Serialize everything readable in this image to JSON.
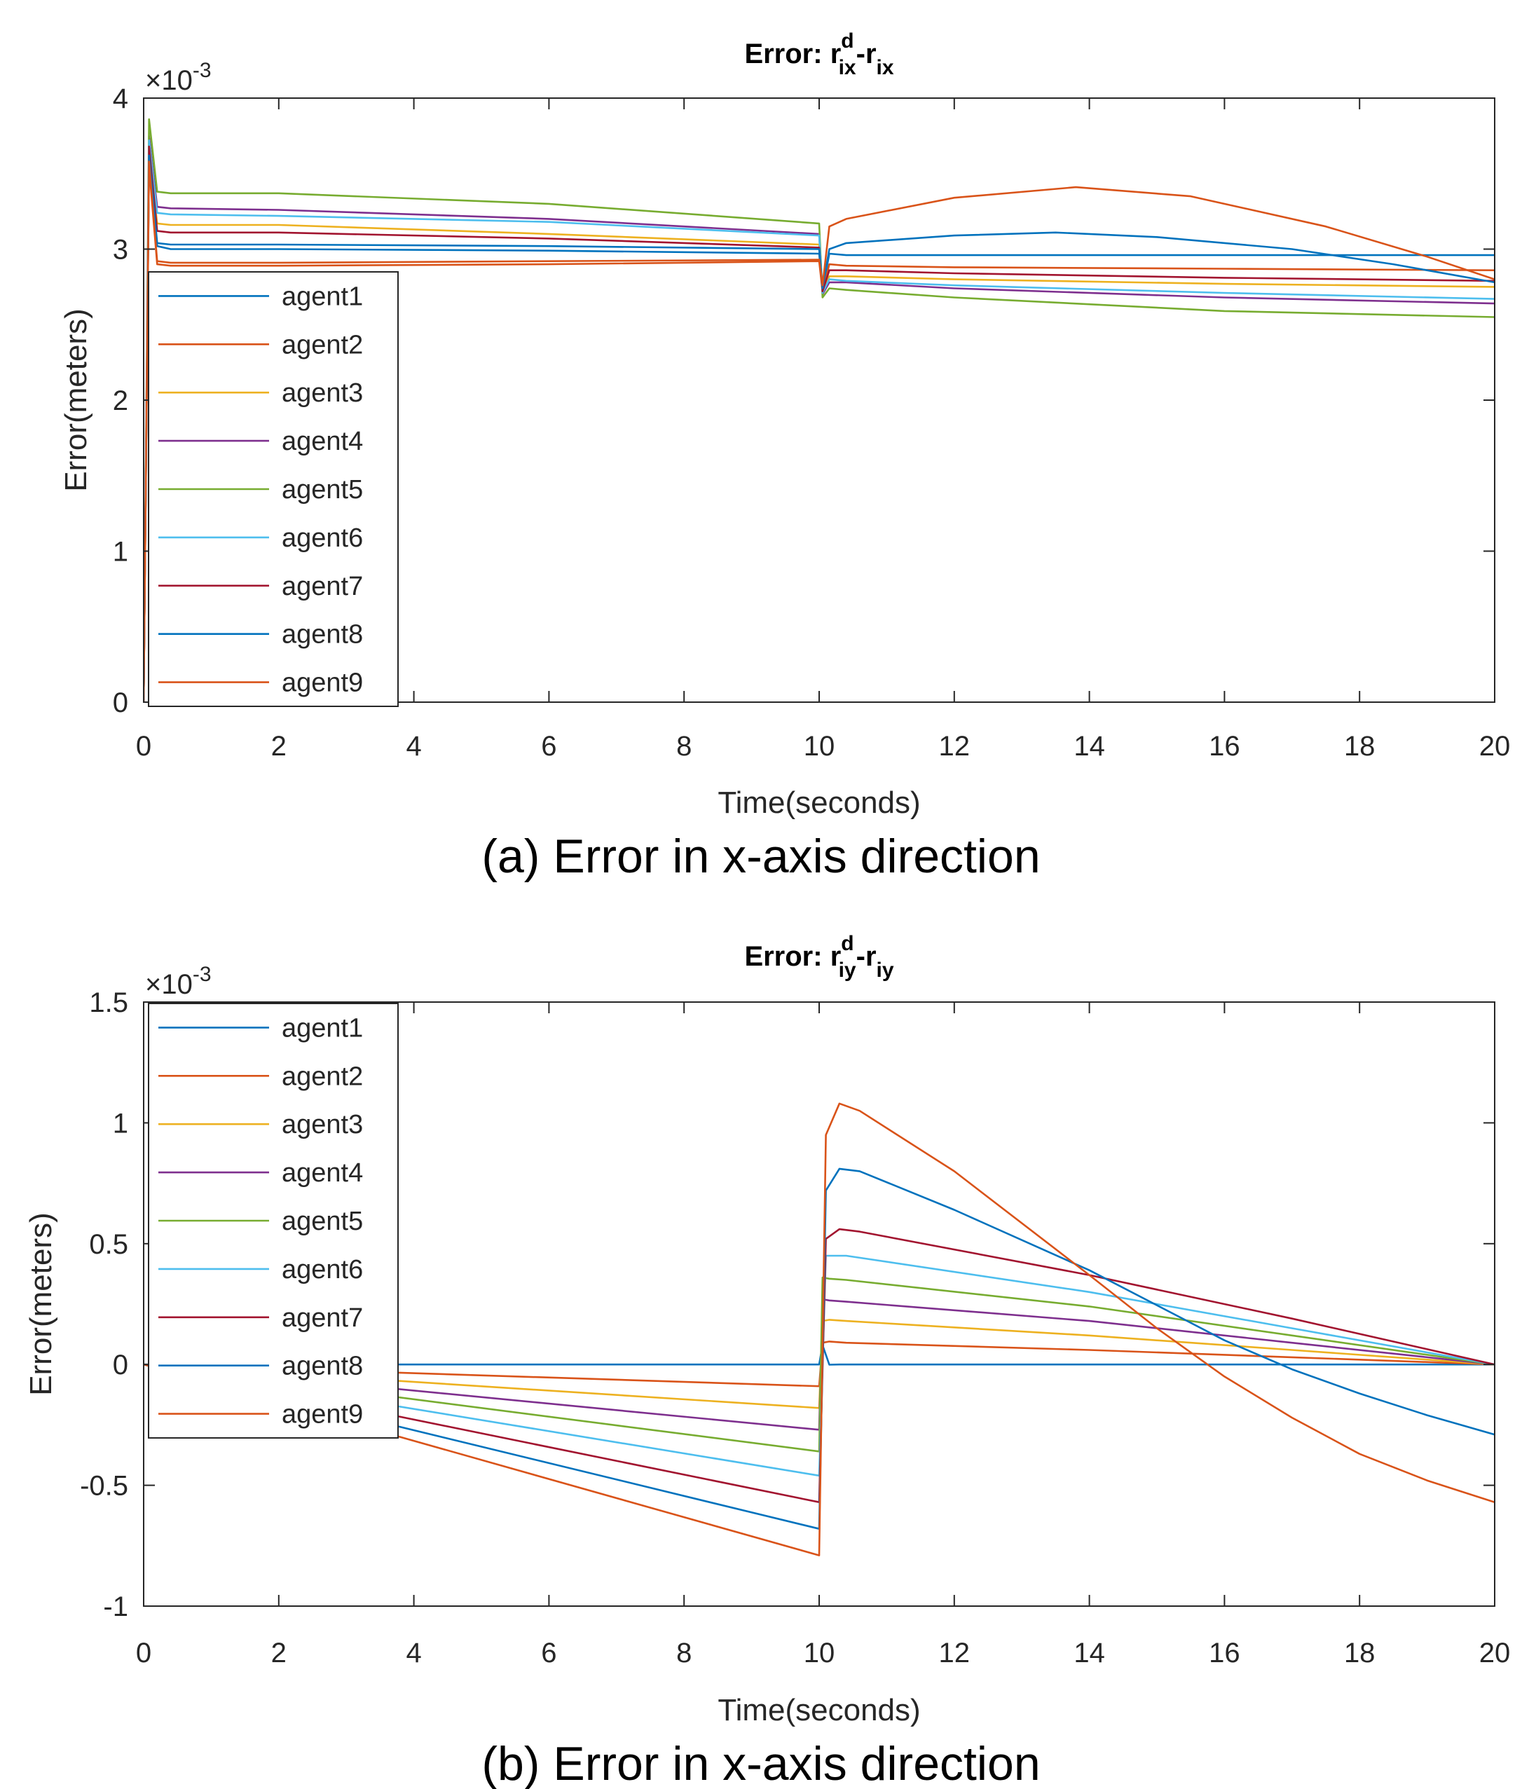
{
  "chart_data": [
    {
      "type": "line",
      "title": {
        "prefix": "Error: ",
        "base1": "r",
        "sup1": "d",
        "sub1": "ix",
        "dash": "-",
        "base2": "r",
        "sub2": "ix"
      },
      "xlabel": "Time(seconds)",
      "ylabel": "Error(meters)",
      "y_scale_label": "×10",
      "y_scale_exp": "-3",
      "xlim": [
        0,
        20
      ],
      "ylim": [
        0,
        4
      ],
      "xticks": [
        "0",
        "2",
        "4",
        "6",
        "8",
        "10",
        "12",
        "14",
        "16",
        "18",
        "20"
      ],
      "yticks": [
        "0",
        "1",
        "2",
        "3",
        "4"
      ],
      "caption": "(a) Error in x-axis direction",
      "series": [
        {
          "name": "agent1",
          "color": "#0072BD",
          "points": [
            [
              0,
              0
            ],
            [
              0.08,
              3.6
            ],
            [
              0.2,
              3.02
            ],
            [
              0.4,
              3.0
            ],
            [
              2,
              3.0
            ],
            [
              6,
              2.99
            ],
            [
              10,
              2.97
            ],
            [
              10.05,
              2.73
            ],
            [
              10.15,
              2.97
            ],
            [
              10.4,
              2.96
            ],
            [
              12,
              2.96
            ],
            [
              16,
              2.96
            ],
            [
              20,
              2.96
            ]
          ]
        },
        {
          "name": "agent2",
          "color": "#D95319",
          "points": [
            [
              0,
              0
            ],
            [
              0.08,
              3.55
            ],
            [
              0.2,
              2.9
            ],
            [
              0.4,
              2.89
            ],
            [
              2,
              2.89
            ],
            [
              6,
              2.9
            ],
            [
              10,
              2.92
            ],
            [
              10.05,
              2.72
            ],
            [
              10.15,
              2.9
            ],
            [
              10.4,
              2.89
            ],
            [
              12,
              2.88
            ],
            [
              16,
              2.87
            ],
            [
              20,
              2.86
            ]
          ]
        },
        {
          "name": "agent3",
          "color": "#EDB120",
          "points": [
            [
              0,
              0
            ],
            [
              0.08,
              3.65
            ],
            [
              0.2,
              3.17
            ],
            [
              0.4,
              3.16
            ],
            [
              2,
              3.16
            ],
            [
              6,
              3.1
            ],
            [
              10,
              3.03
            ],
            [
              10.05,
              2.72
            ],
            [
              10.15,
              2.82
            ],
            [
              10.4,
              2.82
            ],
            [
              12,
              2.8
            ],
            [
              16,
              2.77
            ],
            [
              20,
              2.75
            ]
          ]
        },
        {
          "name": "agent4",
          "color": "#7E2F8E",
          "points": [
            [
              0,
              0
            ],
            [
              0.08,
              3.75
            ],
            [
              0.2,
              3.28
            ],
            [
              0.4,
              3.27
            ],
            [
              2,
              3.26
            ],
            [
              6,
              3.2
            ],
            [
              10,
              3.1
            ],
            [
              10.05,
              2.7
            ],
            [
              10.15,
              2.78
            ],
            [
              10.4,
              2.78
            ],
            [
              12,
              2.74
            ],
            [
              16,
              2.68
            ],
            [
              20,
              2.64
            ]
          ]
        },
        {
          "name": "agent5",
          "color": "#77AC30",
          "points": [
            [
              0,
              0
            ],
            [
              0.08,
              3.86
            ],
            [
              0.2,
              3.38
            ],
            [
              0.4,
              3.37
            ],
            [
              2,
              3.37
            ],
            [
              6,
              3.3
            ],
            [
              10,
              3.17
            ],
            [
              10.05,
              2.68
            ],
            [
              10.15,
              2.74
            ],
            [
              10.4,
              2.73
            ],
            [
              12,
              2.68
            ],
            [
              16,
              2.59
            ],
            [
              20,
              2.55
            ]
          ]
        },
        {
          "name": "agent6",
          "color": "#4DBEEE",
          "points": [
            [
              0,
              0
            ],
            [
              0.08,
              3.72
            ],
            [
              0.2,
              3.24
            ],
            [
              0.4,
              3.23
            ],
            [
              2,
              3.22
            ],
            [
              6,
              3.18
            ],
            [
              10,
              3.09
            ],
            [
              10.05,
              2.71
            ],
            [
              10.15,
              2.8
            ],
            [
              10.4,
              2.79
            ],
            [
              12,
              2.76
            ],
            [
              16,
              2.71
            ],
            [
              20,
              2.67
            ]
          ]
        },
        {
          "name": "agent7",
          "color": "#A2142F",
          "points": [
            [
              0,
              0
            ],
            [
              0.08,
              3.68
            ],
            [
              0.2,
              3.12
            ],
            [
              0.4,
              3.11
            ],
            [
              2,
              3.11
            ],
            [
              6,
              3.07
            ],
            [
              10,
              3.01
            ],
            [
              10.05,
              2.72
            ],
            [
              10.15,
              2.86
            ],
            [
              10.4,
              2.86
            ],
            [
              12,
              2.84
            ],
            [
              16,
              2.81
            ],
            [
              20,
              2.79
            ]
          ]
        },
        {
          "name": "agent8",
          "color": "#0072BD",
          "points": [
            [
              0,
              0
            ],
            [
              0.08,
              3.62
            ],
            [
              0.2,
              3.04
            ],
            [
              0.4,
              3.03
            ],
            [
              2,
              3.03
            ],
            [
              6,
              3.02
            ],
            [
              10,
              3.0
            ],
            [
              10.05,
              2.74
            ],
            [
              10.15,
              3.0
            ],
            [
              10.4,
              3.04
            ],
            [
              12,
              3.09
            ],
            [
              13.5,
              3.11
            ],
            [
              15,
              3.08
            ],
            [
              17,
              3.0
            ],
            [
              18.5,
              2.9
            ],
            [
              20,
              2.78
            ]
          ]
        },
        {
          "name": "agent9",
          "color": "#D95319",
          "points": [
            [
              0,
              0
            ],
            [
              0.08,
              3.58
            ],
            [
              0.2,
              2.92
            ],
            [
              0.4,
              2.91
            ],
            [
              2,
              2.91
            ],
            [
              6,
              2.92
            ],
            [
              10,
              2.93
            ],
            [
              10.05,
              2.76
            ],
            [
              10.15,
              3.15
            ],
            [
              10.4,
              3.2
            ],
            [
              12,
              3.34
            ],
            [
              13.8,
              3.41
            ],
            [
              15.5,
              3.35
            ],
            [
              17.5,
              3.15
            ],
            [
              19,
              2.95
            ],
            [
              20,
              2.8
            ]
          ]
        }
      ]
    },
    {
      "type": "line",
      "title": {
        "prefix": "Error: ",
        "base1": "r",
        "sup1": "d",
        "sub1": "iy",
        "dash": "-",
        "base2": "r",
        "sub2": "iy"
      },
      "xlabel": "Time(seconds)",
      "ylabel": "Error(meters)",
      "y_scale_label": "×10",
      "y_scale_exp": "-3",
      "xlim": [
        0,
        20
      ],
      "ylim": [
        -1,
        1.5
      ],
      "xticks": [
        "0",
        "2",
        "4",
        "6",
        "8",
        "10",
        "12",
        "14",
        "16",
        "18",
        "20"
      ],
      "yticks": [
        "-1",
        "-0.5",
        "0",
        "0.5",
        "1",
        "1.5"
      ],
      "caption": "(b) Error in x-axis direction",
      "series": [
        {
          "name": "agent1",
          "color": "#0072BD",
          "points": [
            [
              0,
              0
            ],
            [
              10,
              0
            ],
            [
              10.05,
              0.08
            ],
            [
              10.15,
              -0.001
            ],
            [
              10.3,
              0
            ],
            [
              20,
              0
            ]
          ]
        },
        {
          "name": "agent2",
          "color": "#D95319",
          "points": [
            [
              0,
              0
            ],
            [
              10,
              -0.09
            ],
            [
              10.05,
              0.09
            ],
            [
              10.15,
              0.095
            ],
            [
              10.4,
              0.09
            ],
            [
              14,
              0.06
            ],
            [
              17,
              0.03
            ],
            [
              20,
              0
            ]
          ]
        },
        {
          "name": "agent3",
          "color": "#EDB120",
          "points": [
            [
              0,
              0
            ],
            [
              10,
              -0.18
            ],
            [
              10.05,
              0.18
            ],
            [
              10.15,
              0.185
            ],
            [
              10.4,
              0.18
            ],
            [
              14,
              0.12
            ],
            [
              17,
              0.06
            ],
            [
              20,
              0
            ]
          ]
        },
        {
          "name": "agent4",
          "color": "#7E2F8E",
          "points": [
            [
              0,
              0
            ],
            [
              10,
              -0.27
            ],
            [
              10.05,
              0.27
            ],
            [
              10.15,
              0.265
            ],
            [
              10.4,
              0.26
            ],
            [
              14,
              0.18
            ],
            [
              17,
              0.09
            ],
            [
              20,
              0
            ]
          ]
        },
        {
          "name": "agent5",
          "color": "#77AC30",
          "points": [
            [
              0,
              0
            ],
            [
              10,
              -0.36
            ],
            [
              10.05,
              0.36
            ],
            [
              10.15,
              0.355
            ],
            [
              10.4,
              0.35
            ],
            [
              14,
              0.24
            ],
            [
              17,
              0.12
            ],
            [
              20,
              0
            ]
          ]
        },
        {
          "name": "agent6",
          "color": "#4DBEEE",
          "points": [
            [
              0,
              0
            ],
            [
              10,
              -0.46
            ],
            [
              10.1,
              0.45
            ],
            [
              10.4,
              0.45
            ],
            [
              14,
              0.3
            ],
            [
              17,
              0.15
            ],
            [
              20,
              0
            ]
          ]
        },
        {
          "name": "agent7",
          "color": "#A2142F",
          "points": [
            [
              0,
              0
            ],
            [
              10,
              -0.57
            ],
            [
              10.1,
              0.52
            ],
            [
              10.3,
              0.56
            ],
            [
              10.6,
              0.55
            ],
            [
              14,
              0.37
            ],
            [
              17,
              0.19
            ],
            [
              20,
              0
            ]
          ]
        },
        {
          "name": "agent8",
          "color": "#0072BD",
          "points": [
            [
              0,
              0
            ],
            [
              10,
              -0.68
            ],
            [
              10.1,
              0.72
            ],
            [
              10.3,
              0.81
            ],
            [
              10.6,
              0.8
            ],
            [
              12,
              0.64
            ],
            [
              14,
              0.39
            ],
            [
              16,
              0.1
            ],
            [
              17,
              -0.02
            ],
            [
              18,
              -0.12
            ],
            [
              19,
              -0.21
            ],
            [
              20,
              -0.29
            ]
          ]
        },
        {
          "name": "agent9",
          "color": "#D95319",
          "points": [
            [
              0,
              0
            ],
            [
              10,
              -0.79
            ],
            [
              10.1,
              0.95
            ],
            [
              10.3,
              1.08
            ],
            [
              10.6,
              1.05
            ],
            [
              12,
              0.8
            ],
            [
              14,
              0.37
            ],
            [
              15,
              0.15
            ],
            [
              16,
              -0.05
            ],
            [
              17,
              -0.22
            ],
            [
              18,
              -0.37
            ],
            [
              19,
              -0.48
            ],
            [
              20,
              -0.57
            ]
          ]
        }
      ]
    }
  ]
}
